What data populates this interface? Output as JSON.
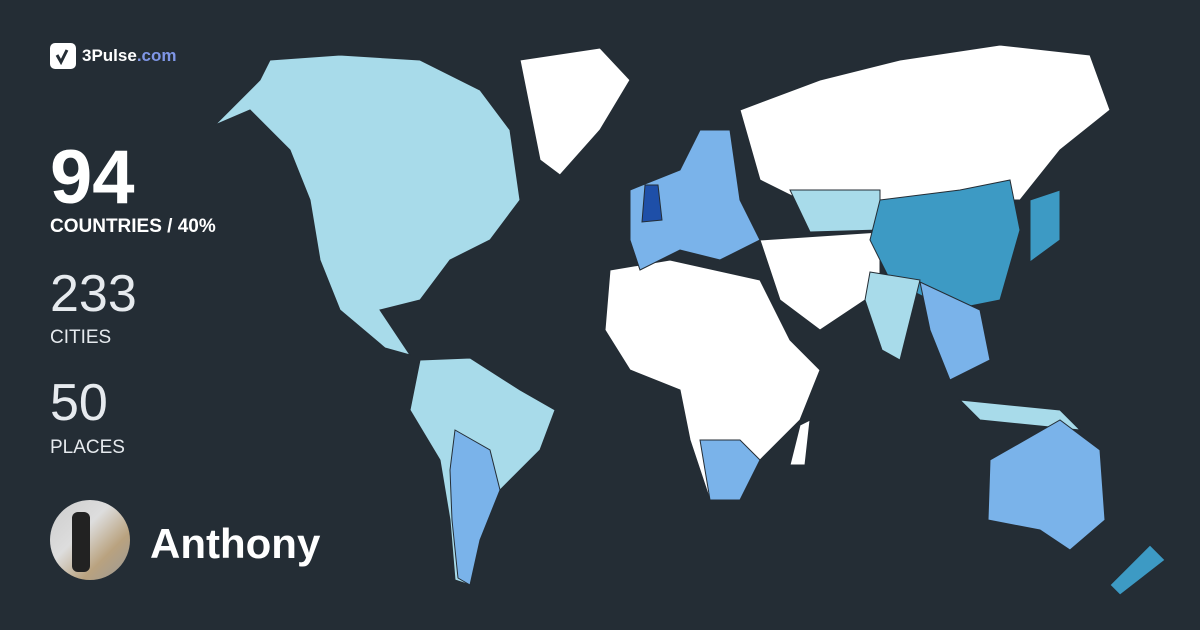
{
  "brand": {
    "name": "3Pulse",
    ".com": ".com",
    "suffix": ".com",
    "accent": "#7f96e6"
  },
  "stats": {
    "countries": {
      "value": "94",
      "label": "COUNTRIES / 40%"
    },
    "cities": {
      "value": "233",
      "label": "CITIES"
    },
    "places": {
      "value": "50",
      "label": "PLACES"
    }
  },
  "user": {
    "name": "Anthony"
  },
  "map": {
    "colors": {
      "unvisited": "#ffffff",
      "visited_light": "#a8dbea",
      "visited_medium": "#7ab3ea",
      "visited_teal": "#3d9ac4",
      "visited_dark": "#1e4fa8",
      "background": "#242d35"
    }
  }
}
